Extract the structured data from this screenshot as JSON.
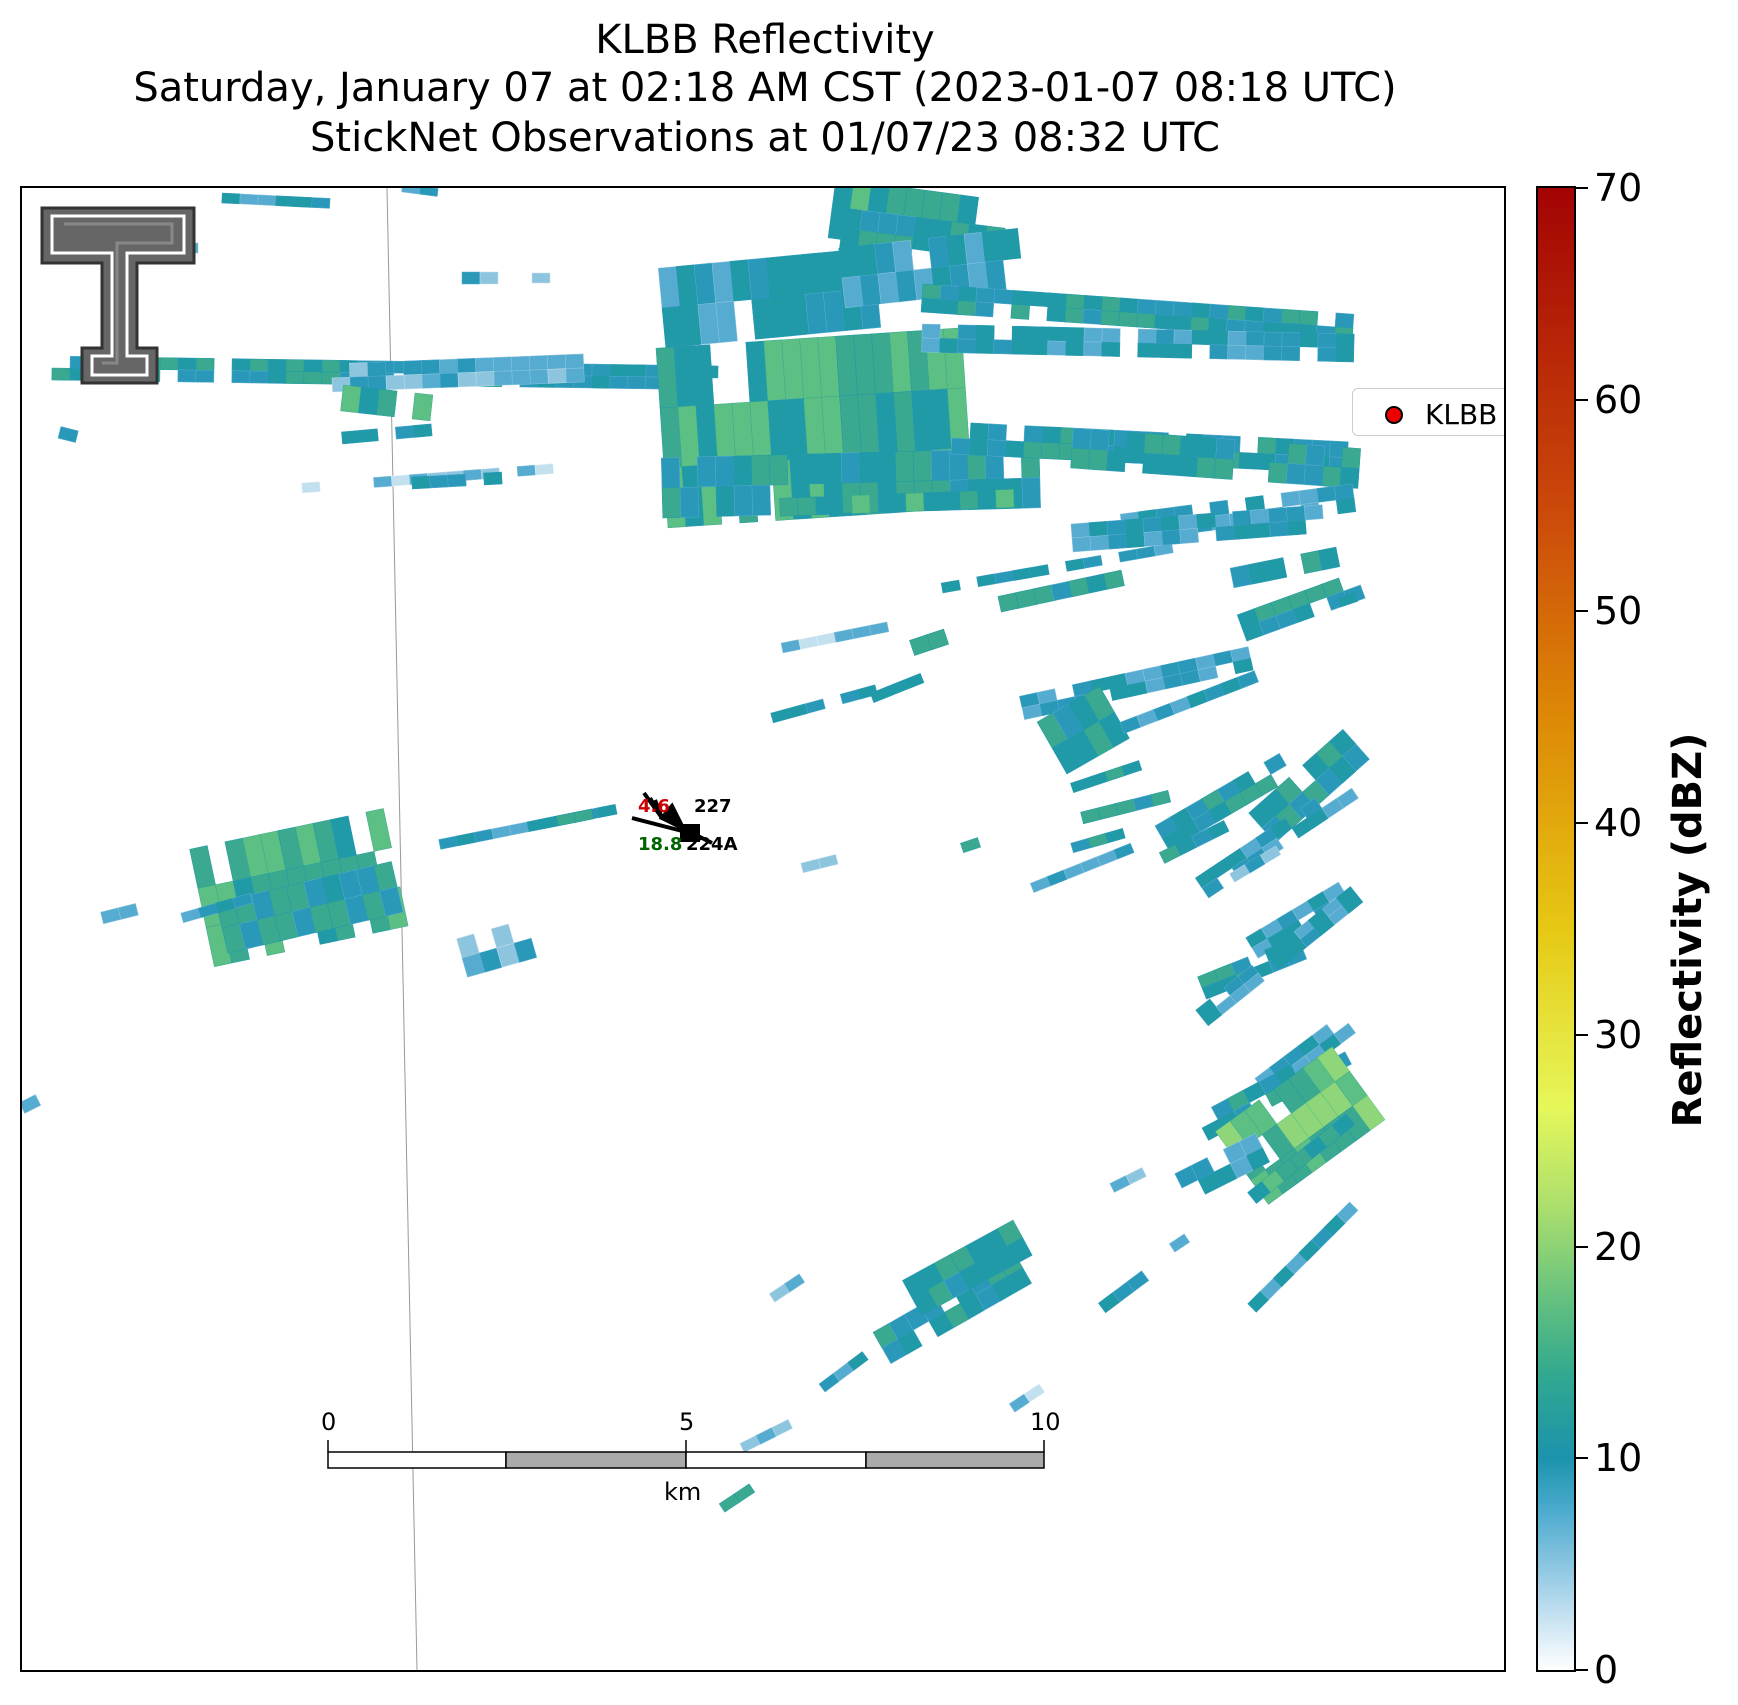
{
  "title": {
    "line1": "KLBB Reflectivity",
    "line2": "Saturday, January 07 at 02:18 AM CST (2023-01-07 08:18 UTC)",
    "line3": "StickNet Observations at 01/07/23 08:32 UTC"
  },
  "legend": {
    "label": "KLBB",
    "marker_color": "#ee0000"
  },
  "colorbar": {
    "label": "Reflectivity (dBZ)",
    "ticks": [
      "0",
      "10",
      "20",
      "30",
      "40",
      "50",
      "60",
      "70"
    ],
    "range": [
      0,
      70
    ]
  },
  "stations": [
    {
      "id": "227",
      "temp": "4.6",
      "temp_color": "#cc0000"
    },
    {
      "id": "224A",
      "dewpoint": "18.8",
      "dew_color": "#006400"
    }
  ],
  "scalebar": {
    "ticks": [
      "0",
      "5",
      "10"
    ],
    "unit": "km"
  },
  "logo": "texas-tech-double-t-logo"
}
